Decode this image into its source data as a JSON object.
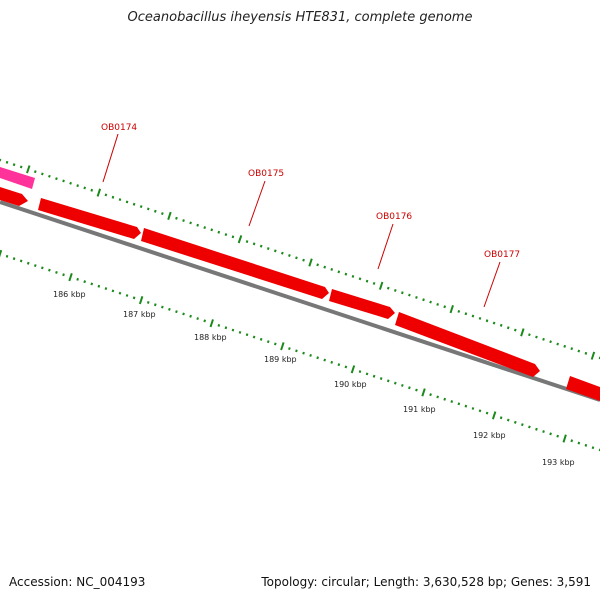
{
  "title": "Oceanobacillus iheyensis HTE831, complete genome",
  "footer": {
    "accession": "Accession: NC_004193",
    "summary": "Topology: circular; Length: 3,630,528 bp; Genes: 3,591"
  },
  "colors": {
    "gene": "#ee0000",
    "gene_alt": "#ff3399",
    "backbone": "#777777",
    "ticks": "#1a8a1a",
    "label": "#cc0000"
  },
  "genes": [
    {
      "name": "OB0174"
    },
    {
      "name": "OB0175"
    },
    {
      "name": "OB0176"
    },
    {
      "name": "OB0177"
    }
  ],
  "scale_labels": [
    "186 kbp",
    "187 kbp",
    "188 kbp",
    "189 kbp",
    "190 kbp",
    "191 kbp",
    "192 kbp",
    "193 kbp"
  ]
}
